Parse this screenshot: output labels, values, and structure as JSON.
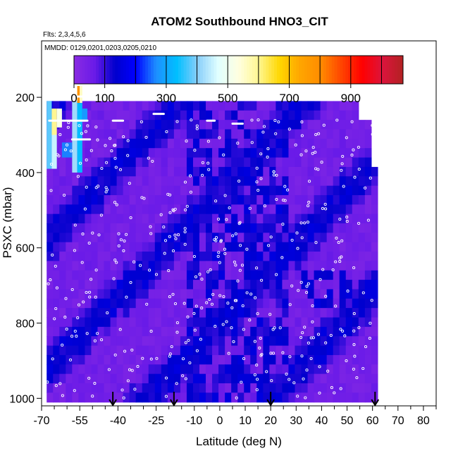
{
  "chart_data": {
    "type": "heatmap",
    "title": "ATOM2 Southbound HNO3_CIT",
    "subtitle_flights": "Flts: 2,3,4,5,6",
    "subtitle_dates": "MMDD: 0129,0201,0203,0205,0210",
    "xlabel": "Latitude (deg N)",
    "ylabel": "PSXC (mbar)",
    "xlim": [
      -70,
      85
    ],
    "ylim": [
      1020,
      50
    ],
    "y_reversed": true,
    "x_ticks": [
      -70,
      -55,
      -40,
      -25,
      -10,
      0,
      10,
      20,
      30,
      40,
      50,
      60,
      70,
      80
    ],
    "x_tick_labels": [
      "-70",
      "-55",
      "-40",
      "-25",
      "-10",
      "0",
      "10",
      "20",
      "30",
      "40",
      "50",
      "60",
      "70",
      "80"
    ],
    "x_minor_ticks": [
      -65,
      -60,
      -50,
      -45,
      -35,
      -30,
      -20,
      -15,
      -5,
      5,
      15,
      25,
      35,
      45,
      55,
      65,
      75,
      85
    ],
    "y_ticks": [
      200,
      400,
      600,
      800,
      1000
    ],
    "y_tick_labels": [
      "200",
      "400",
      "600",
      "800",
      "1000"
    ],
    "colorbar": {
      "range": [
        0,
        1070
      ],
      "tick_values": [
        0,
        100,
        300,
        500,
        700,
        900
      ],
      "tick_labels": [
        "0",
        "100",
        "300",
        "500",
        "700",
        "900"
      ],
      "divisions": [
        0,
        100,
        200,
        300,
        400,
        500,
        600,
        700,
        800,
        900,
        1000,
        1070
      ],
      "colors": [
        "#8a2be2",
        "#6a1be8",
        "#0000cd",
        "#0000ff",
        "#1e90ff",
        "#00bfff",
        "#87cefa",
        "#e0ffff",
        "#ffffe0",
        "#fff68f",
        "#ffd700",
        "#ffa500",
        "#ff8c00",
        "#ff4500",
        "#ff0000",
        "#dc143c",
        "#b22222"
      ]
    },
    "arrow_latitudes": [
      -42,
      -18,
      20,
      61
    ],
    "grid": false,
    "legend": "colorbar top"
  }
}
